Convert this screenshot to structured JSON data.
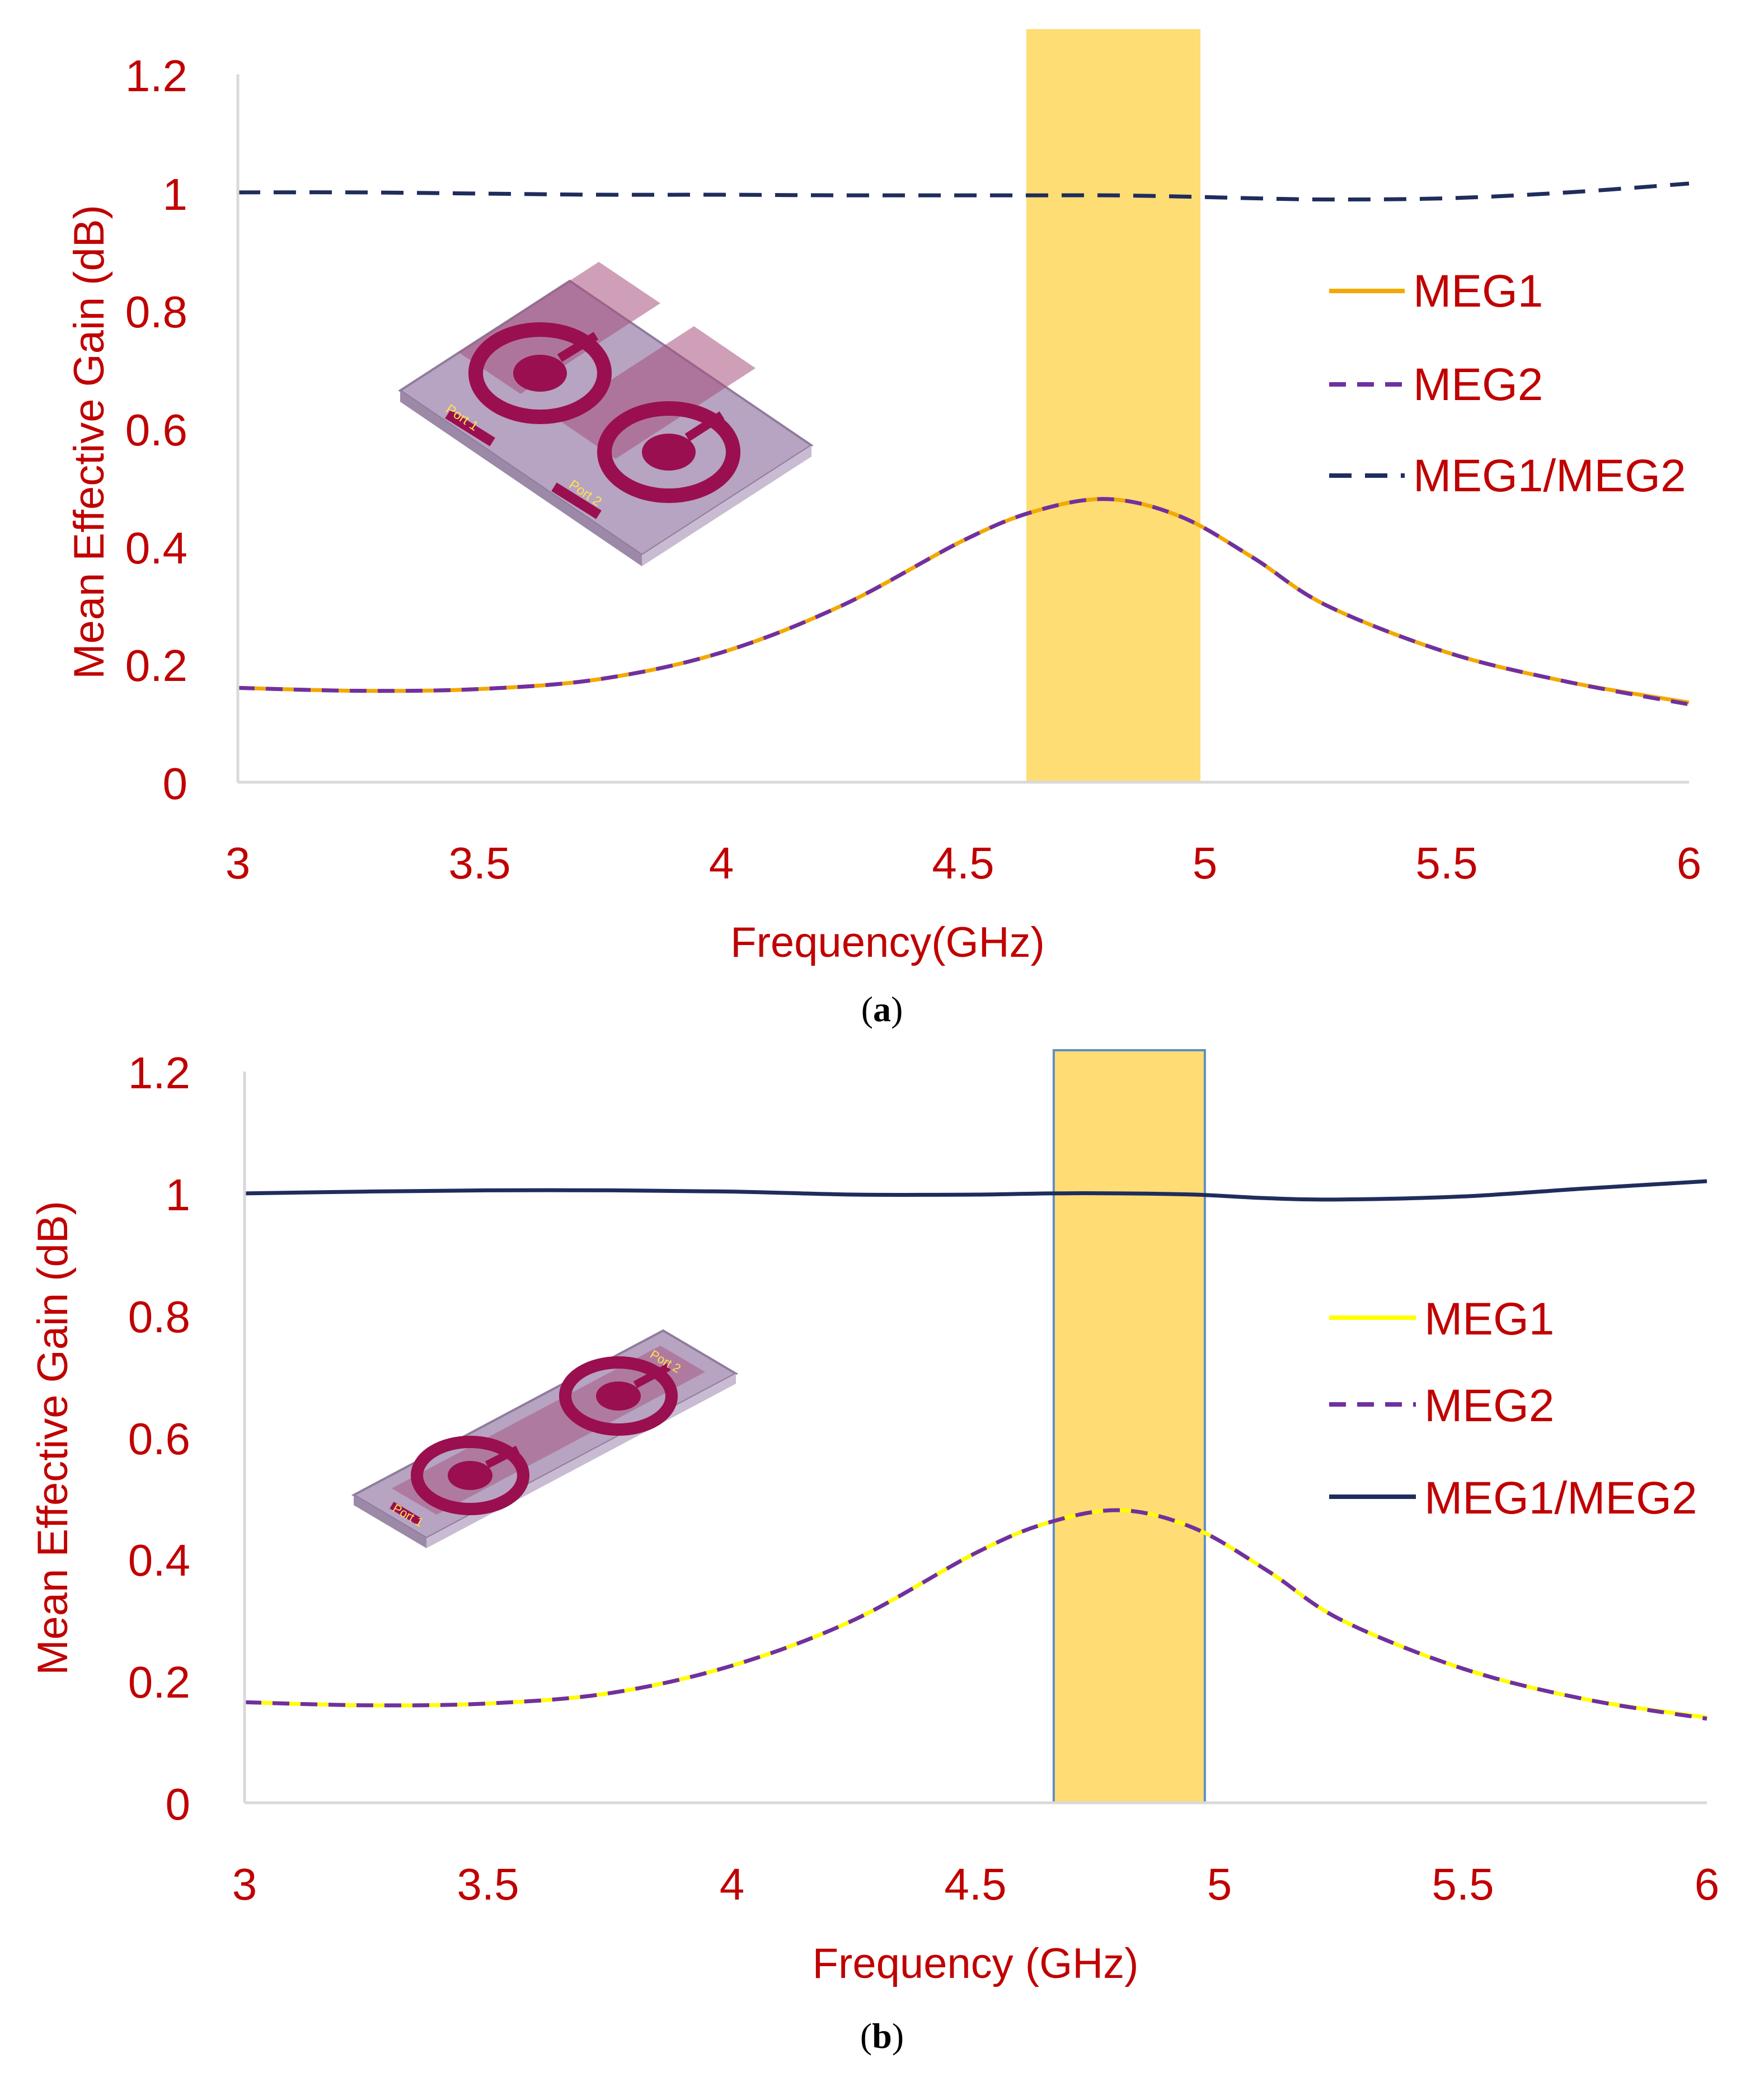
{
  "chart_data": [
    {
      "type": "line",
      "panel_label": "a",
      "xlabel": "Frequency(GHz)",
      "ylabel": "Mean Effective Gain (dB)",
      "xlim": [
        3,
        6
      ],
      "ylim": [
        0,
        1.2
      ],
      "x_ticks": [
        "3",
        "3.5",
        "4",
        "4.5",
        "5",
        "5.5",
        "6"
      ],
      "y_ticks": [
        "0",
        "0.2",
        "0.4",
        "0.6",
        "0.8",
        "1",
        "1.2"
      ],
      "highlight_band": [
        4.63,
        4.99
      ],
      "inset_labels": [
        "Port 1",
        "Port 2"
      ],
      "x": [
        3.0,
        3.25,
        3.5,
        3.75,
        4.0,
        4.25,
        4.5,
        4.65,
        4.8,
        4.95,
        5.1,
        5.25,
        5.5,
        5.75,
        6.0
      ],
      "series": [
        {
          "name": "MEG1",
          "color": "#f2a900",
          "dash": "solid",
          "values": [
            0.16,
            0.155,
            0.158,
            0.175,
            0.22,
            0.3,
            0.41,
            0.46,
            0.48,
            0.45,
            0.38,
            0.3,
            0.22,
            0.17,
            0.135
          ]
        },
        {
          "name": "MEG2",
          "color": "#7030a0",
          "dash": "dashed",
          "values": [
            0.16,
            0.155,
            0.158,
            0.175,
            0.22,
            0.3,
            0.41,
            0.46,
            0.48,
            0.45,
            0.38,
            0.3,
            0.22,
            0.17,
            0.132
          ]
        },
        {
          "name": "MEG1/MEG2",
          "color": "#1f2d5c",
          "dash": "longdash",
          "values": [
            1.0,
            1.0,
            0.998,
            0.996,
            0.996,
            0.995,
            0.995,
            0.995,
            0.995,
            0.993,
            0.99,
            0.988,
            0.99,
            1.0,
            1.015
          ]
        }
      ],
      "legend": [
        "MEG1",
        "MEG2",
        "MEG1/MEG2"
      ],
      "legend_position": "right"
    },
    {
      "type": "line",
      "panel_label": "b",
      "xlabel": "Frequency (GHz)",
      "ylabel": "Mean Effective Gain (dB)",
      "xlim": [
        3,
        6
      ],
      "ylim": [
        0,
        1.2
      ],
      "x_ticks": [
        "3",
        "3.5",
        "4",
        "4.5",
        "5",
        "5.5",
        "6"
      ],
      "y_ticks": [
        "0",
        "0.2",
        "0.4",
        "0.6",
        "0.8",
        "1",
        "1.2"
      ],
      "highlight_band": [
        4.66,
        4.97
      ],
      "inset_labels": [
        "Port 1",
        "Port 2"
      ],
      "x": [
        3.0,
        3.25,
        3.5,
        3.75,
        4.0,
        4.25,
        4.5,
        4.65,
        4.8,
        4.95,
        5.1,
        5.25,
        5.5,
        5.75,
        6.0
      ],
      "series": [
        {
          "name": "MEG1",
          "color": "#ffff00",
          "dash": "solid",
          "values": [
            0.165,
            0.16,
            0.163,
            0.18,
            0.225,
            0.3,
            0.41,
            0.46,
            0.48,
            0.45,
            0.38,
            0.3,
            0.22,
            0.17,
            0.14
          ]
        },
        {
          "name": "MEG2",
          "color": "#7030a0",
          "dash": "dashed",
          "values": [
            0.165,
            0.16,
            0.163,
            0.18,
            0.225,
            0.3,
            0.41,
            0.46,
            0.48,
            0.45,
            0.38,
            0.3,
            0.22,
            0.17,
            0.138
          ]
        },
        {
          "name": "MEG1/MEG2",
          "color": "#1f2d5c",
          "dash": "solid",
          "values": [
            1.0,
            1.003,
            1.005,
            1.005,
            1.003,
            0.998,
            0.998,
            1.0,
            1.0,
            0.998,
            0.992,
            0.99,
            0.995,
            1.008,
            1.02
          ]
        }
      ],
      "legend": [
        "MEG1",
        "MEG2",
        "MEG1/MEG2"
      ],
      "legend_position": "right"
    }
  ]
}
